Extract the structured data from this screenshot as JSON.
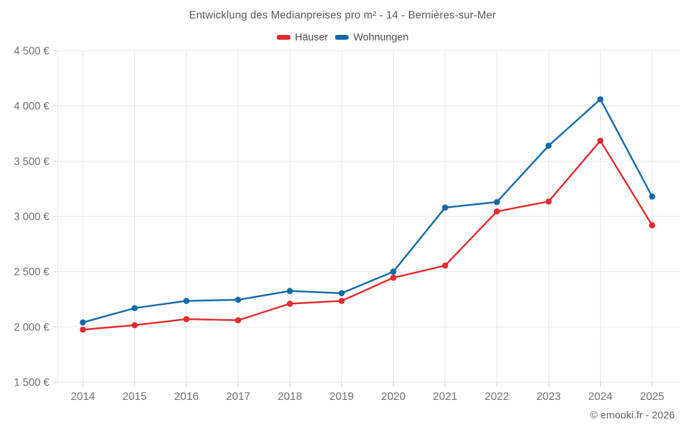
{
  "chart_data": {
    "type": "line",
    "title": "Entwicklung des Medianpreises pro m² - 14 - Bernières-sur-Mer",
    "x": [
      "2014",
      "2015",
      "2016",
      "2017",
      "2018",
      "2019",
      "2020",
      "2021",
      "2022",
      "2023",
      "2024",
      "2025"
    ],
    "series": [
      {
        "name": "Häuser",
        "color": "#e22b2d",
        "values": [
          1975,
          2015,
          2070,
          2060,
          2210,
          2235,
          2445,
          2555,
          3045,
          3135,
          3685,
          2920
        ]
      },
      {
        "name": "Wohnungen",
        "color": "#1369a8",
        "values": [
          2040,
          2170,
          2235,
          2245,
          2325,
          2305,
          2500,
          3080,
          3130,
          3640,
          4060,
          3180
        ]
      }
    ],
    "ylim": [
      1500,
      4500
    ],
    "ytick_step": 500,
    "ytick_labels": [
      "1 500 €",
      "2 000 €",
      "2 500 €",
      "3 000 €",
      "3 500 €",
      "4 000 €",
      "4 500 €"
    ],
    "grid": true,
    "legend_position": "top"
  },
  "footer": {
    "credit": "© emooki.fr - 2026"
  },
  "style": {
    "gridline_color": "#e7e7e7",
    "tick_color": "#cfcfcf",
    "label_color": "#6e6e6e"
  }
}
